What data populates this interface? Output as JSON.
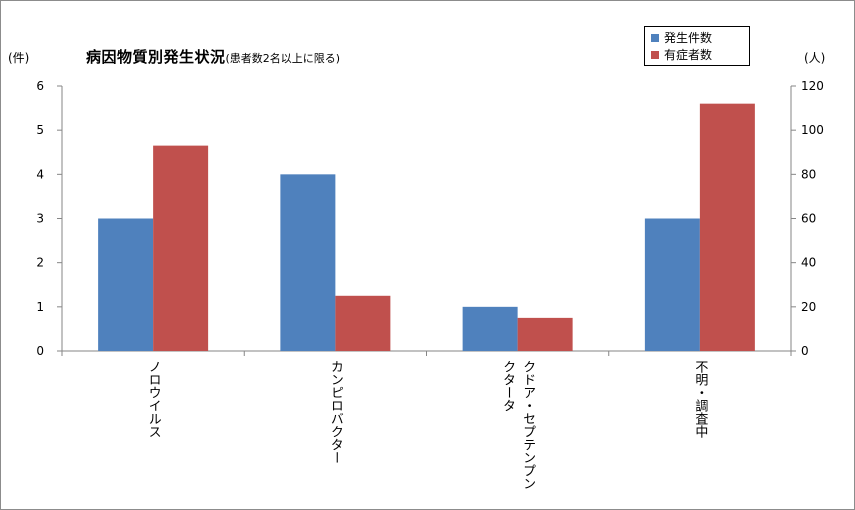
{
  "chart_data": {
    "type": "bar",
    "title": "病因物質別発生状況",
    "subtitle": "(患者数2名以上に限る)",
    "categories": [
      "ノロウイルス",
      "カンピロバクター",
      "クドア・セプテンプンクタータ",
      "不明・調査中"
    ],
    "category_lines": [
      [
        "ノロウイルス"
      ],
      [
        "カンピロバクター"
      ],
      [
        "クドア・セプテンプン",
        "クタータ"
      ],
      [
        "不明・調査中"
      ]
    ],
    "series": [
      {
        "name": "発生件数",
        "axis": "left",
        "values": [
          3,
          4,
          1,
          3
        ],
        "color": "#4f81bd"
      },
      {
        "name": "有症者数",
        "axis": "right",
        "values": [
          93,
          25,
          15,
          112
        ],
        "color": "#c0504d"
      }
    ],
    "y_left": {
      "unit_label": "(件)",
      "ylim": [
        0,
        6
      ],
      "ticks": [
        "0",
        "1",
        "2",
        "3",
        "4",
        "5",
        "6"
      ]
    },
    "y_right": {
      "unit_label": "(人)",
      "ylim": [
        0,
        120
      ],
      "ticks": [
        "0",
        "20",
        "40",
        "60",
        "80",
        "100",
        "120"
      ]
    },
    "grid": false,
    "legend_position": "top-right"
  }
}
